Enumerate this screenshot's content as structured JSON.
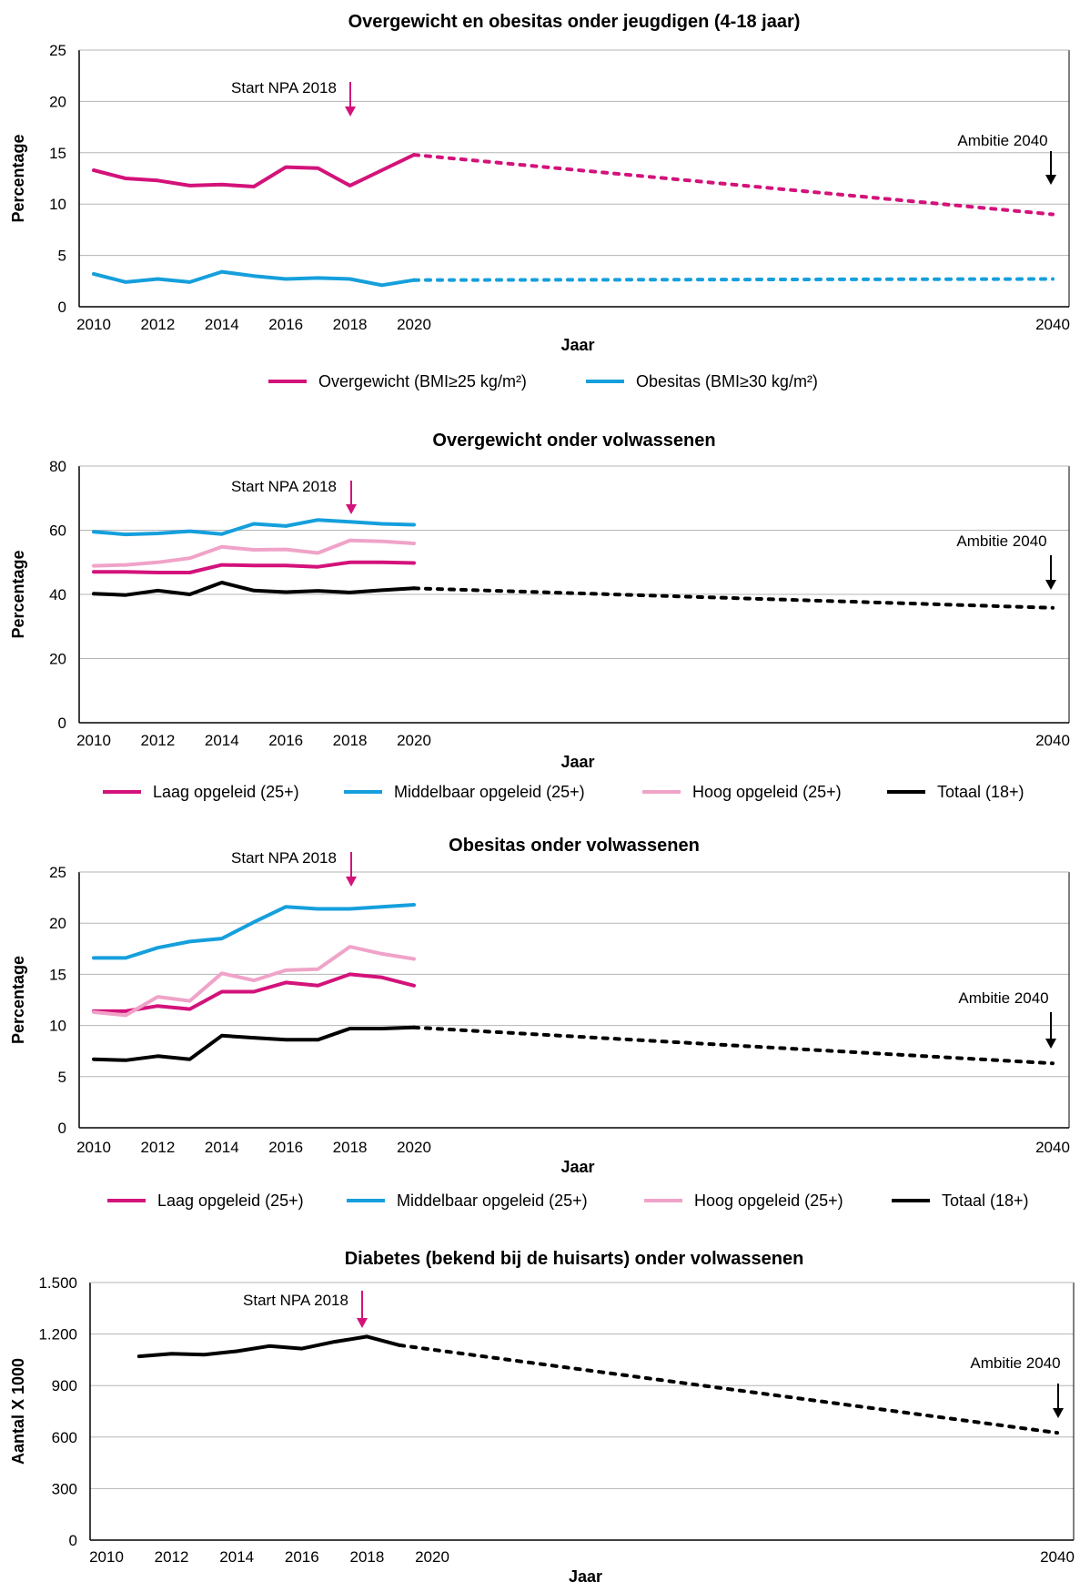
{
  "colors": {
    "magenta": "#d3127a",
    "blue": "#159fdc",
    "pink": "#f0a3c8",
    "black": "#000000",
    "grid": "#b5b5b5",
    "arrow_npa": "#d3127a",
    "arrow_ambitie": "#000000"
  },
  "chart_data": [
    {
      "type": "line",
      "title": "Overgewicht en obesitas onder jeugdigen (4-18 jaar)",
      "xlabel": "Jaar",
      "ylabel": "Percentage",
      "ylim": [
        0,
        25
      ],
      "yticks": [
        0,
        5,
        10,
        15,
        20,
        25
      ],
      "ytick_labels": [
        "0",
        "5",
        "10",
        "15",
        "20",
        "25"
      ],
      "xticks": [
        2010,
        2012,
        2014,
        2016,
        2018,
        2020,
        2040
      ],
      "xtick_labels": [
        "2010",
        "2012",
        "2014",
        "2016",
        "2018",
        "2020",
        "2040"
      ],
      "grid": true,
      "legend_position": "bottom",
      "annotations": [
        {
          "text": "Start NPA 2018",
          "x": 2018,
          "kind": "npa"
        },
        {
          "text": "Ambitie 2040",
          "x": 2040,
          "kind": "ambitie"
        }
      ],
      "series": [
        {
          "name": "Overgewicht (BMI≥25 kg/m²)",
          "color": "magenta",
          "x": [
            2010,
            2011,
            2012,
            2013,
            2014,
            2015,
            2016,
            2017,
            2018,
            2019,
            2020
          ],
          "values": [
            13.3,
            12.5,
            12.3,
            11.8,
            11.9,
            11.7,
            13.6,
            13.5,
            11.8,
            13.3,
            14.8
          ],
          "projection": {
            "x": [
              2020,
              2040
            ],
            "values": [
              14.8,
              9.0
            ]
          }
        },
        {
          "name": "Obesitas (BMI≥30 kg/m²)",
          "color": "blue",
          "x": [
            2010,
            2011,
            2012,
            2013,
            2014,
            2015,
            2016,
            2017,
            2018,
            2019,
            2020
          ],
          "values": [
            3.2,
            2.4,
            2.7,
            2.4,
            3.4,
            3.0,
            2.7,
            2.8,
            2.7,
            2.1,
            2.6
          ],
          "projection": {
            "x": [
              2020,
              2040
            ],
            "values": [
              2.6,
              2.7
            ]
          }
        }
      ]
    },
    {
      "type": "line",
      "title": "Overgewicht onder volwassenen",
      "xlabel": "Jaar",
      "ylabel": "Percentage",
      "ylim": [
        0,
        80
      ],
      "yticks": [
        0,
        20,
        40,
        60,
        80
      ],
      "ytick_labels": [
        "0",
        "20",
        "40",
        "60",
        "80"
      ],
      "xticks": [
        2010,
        2012,
        2014,
        2016,
        2018,
        2020,
        2040
      ],
      "xtick_labels": [
        "2010",
        "2012",
        "2014",
        "2016",
        "2018",
        "2020",
        "2040"
      ],
      "grid": true,
      "legend_position": "bottom",
      "annotations": [
        {
          "text": "Start NPA 2018",
          "x": 2018,
          "kind": "npa"
        },
        {
          "text": "Ambitie 2040",
          "x": 2040,
          "kind": "ambitie"
        }
      ],
      "series": [
        {
          "name": "Laag opgeleid (25+)",
          "color": "magenta",
          "x": [
            2010,
            2011,
            2012,
            2013,
            2014,
            2015,
            2016,
            2017,
            2018,
            2019,
            2020
          ],
          "values": [
            47.0,
            47.0,
            46.8,
            46.8,
            49.2,
            49.0,
            49.0,
            48.6,
            50.0,
            50.0,
            49.8
          ]
        },
        {
          "name": "Middelbaar opgeleid (25+)",
          "color": "blue",
          "x": [
            2010,
            2011,
            2012,
            2013,
            2014,
            2015,
            2016,
            2017,
            2018,
            2019,
            2020
          ],
          "values": [
            59.5,
            58.7,
            59.0,
            59.7,
            58.8,
            62.0,
            61.3,
            63.2,
            62.6,
            62.0,
            61.7
          ]
        },
        {
          "name": "Hoog opgeleid (25+)",
          "color": "pink",
          "x": [
            2010,
            2011,
            2012,
            2013,
            2014,
            2015,
            2016,
            2017,
            2018,
            2019,
            2020
          ],
          "values": [
            48.9,
            49.2,
            50.0,
            51.3,
            54.8,
            53.9,
            54.0,
            52.9,
            56.8,
            56.5,
            55.9
          ]
        },
        {
          "name": "Totaal (18+)",
          "color": "black",
          "x": [
            2010,
            2011,
            2012,
            2013,
            2014,
            2015,
            2016,
            2017,
            2018,
            2019,
            2020
          ],
          "values": [
            40.2,
            39.8,
            41.2,
            40.0,
            43.7,
            41.2,
            40.7,
            41.1,
            40.6,
            41.3,
            41.9
          ],
          "projection": {
            "x": [
              2020,
              2040
            ],
            "values": [
              41.9,
              35.8
            ]
          }
        }
      ]
    },
    {
      "type": "line",
      "title": "Obesitas onder volwassenen",
      "xlabel": "Jaar",
      "ylabel": "Percentage",
      "ylim": [
        0,
        25
      ],
      "yticks": [
        0,
        5,
        10,
        15,
        20,
        25
      ],
      "ytick_labels": [
        "0",
        "5",
        "10",
        "15",
        "20",
        "25"
      ],
      "xticks": [
        2010,
        2012,
        2014,
        2016,
        2018,
        2020,
        2040
      ],
      "xtick_labels": [
        "2010",
        "2012",
        "2014",
        "2016",
        "2018",
        "2020",
        "2040"
      ],
      "grid": true,
      "legend_position": "bottom",
      "annotations": [
        {
          "text": "Start NPA 2018",
          "x": 2018,
          "kind": "npa"
        },
        {
          "text": "Ambitie 2040",
          "x": 2040,
          "kind": "ambitie"
        }
      ],
      "series": [
        {
          "name": "Laag opgeleid (25+)",
          "color": "magenta",
          "x": [
            2010,
            2011,
            2012,
            2013,
            2014,
            2015,
            2016,
            2017,
            2018,
            2019,
            2020
          ],
          "values": [
            11.4,
            11.4,
            11.9,
            11.6,
            13.3,
            13.3,
            14.2,
            13.9,
            15.0,
            14.7,
            13.9
          ]
        },
        {
          "name": "Middelbaar opgeleid (25+)",
          "color": "blue",
          "x": [
            2010,
            2011,
            2012,
            2013,
            2014,
            2015,
            2016,
            2017,
            2018,
            2019,
            2020
          ],
          "values": [
            16.6,
            16.6,
            17.6,
            18.2,
            18.5,
            20.1,
            21.6,
            21.4,
            21.4,
            21.6,
            21.8
          ]
        },
        {
          "name": "Hoog opgeleid (25+)",
          "color": "pink",
          "x": [
            2010,
            2011,
            2012,
            2013,
            2014,
            2015,
            2016,
            2017,
            2018,
            2019,
            2020
          ],
          "values": [
            11.3,
            11.0,
            12.8,
            12.4,
            15.1,
            14.4,
            15.4,
            15.5,
            17.7,
            17.0,
            16.5
          ]
        },
        {
          "name": "Totaal (18+)",
          "color": "black",
          "x": [
            2010,
            2011,
            2012,
            2013,
            2014,
            2015,
            2016,
            2017,
            2018,
            2019,
            2020
          ],
          "values": [
            6.7,
            6.6,
            7.0,
            6.7,
            9.0,
            8.8,
            8.6,
            8.6,
            9.7,
            9.7,
            9.8
          ],
          "projection": {
            "x": [
              2020,
              2040
            ],
            "values": [
              9.8,
              6.3
            ]
          }
        }
      ]
    },
    {
      "type": "line",
      "title": "Diabetes (bekend bij de huisarts) onder volwassenen",
      "xlabel": "Jaar",
      "ylabel": "Aantal X 1000",
      "ylim": [
        0,
        1500
      ],
      "yticks": [
        0,
        300,
        600,
        900,
        1200,
        1500
      ],
      "ytick_labels": [
        "0",
        "300",
        "600",
        "900",
        "1.200",
        "1.500"
      ],
      "xticks": [
        2010,
        2012,
        2014,
        2016,
        2018,
        2020,
        2040
      ],
      "xtick_labels": [
        "2010",
        "2012",
        "2014",
        "2016",
        "2018",
        "2020",
        "2040"
      ],
      "grid": true,
      "legend_position": "none",
      "annotations": [
        {
          "text": "Start NPA 2018",
          "x": 2018,
          "kind": "npa"
        },
        {
          "text": "Ambitie 2040",
          "x": 2040,
          "kind": "ambitie"
        }
      ],
      "series": [
        {
          "name": "",
          "color": "black",
          "x": [
            2011,
            2012,
            2013,
            2014,
            2015,
            2016,
            2017,
            2018,
            2019
          ],
          "values": [
            1070,
            1085,
            1080,
            1100,
            1130,
            1115,
            1155,
            1185,
            1135
          ],
          "projection": {
            "x": [
              2019,
              2040
            ],
            "values": [
              1135,
              625
            ]
          }
        }
      ]
    }
  ]
}
